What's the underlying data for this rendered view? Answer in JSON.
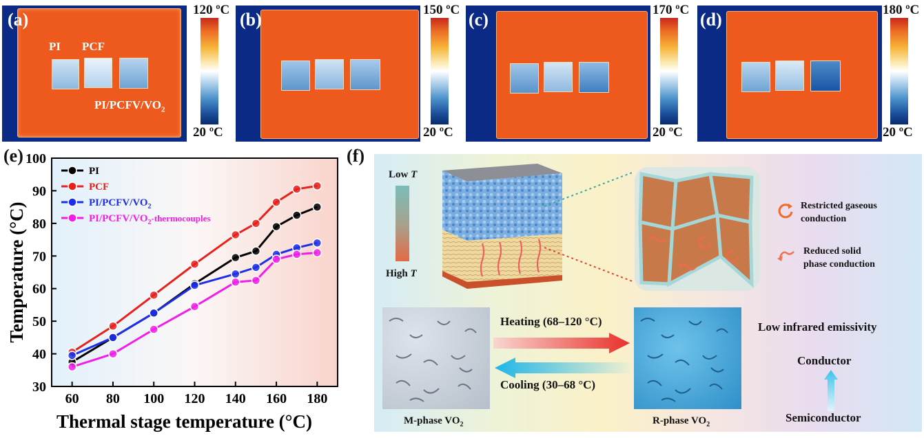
{
  "panels": [
    {
      "label": "(a)",
      "max": "120 ºC",
      "min": "20 ºC",
      "samples": [
        "PI",
        "PCF",
        "PI/PCFV/VO",
        "2"
      ]
    },
    {
      "label": "(b)",
      "max": "150 ºC",
      "min": "20 ºC"
    },
    {
      "label": "(c)",
      "max": "170 ºC",
      "min": "20 ºC"
    },
    {
      "label": "(d)",
      "max": "180 ºC",
      "min": "20 ºC"
    }
  ],
  "panel_e_label": "(e)",
  "panel_f_label": "(f)",
  "chart_data": {
    "type": "line",
    "xlabel": "Thermal stage temperature (°C)",
    "ylabel": "Temperature (°C)",
    "x": [
      60,
      80,
      100,
      120,
      140,
      150,
      160,
      170,
      180
    ],
    "xlim": [
      50,
      190
    ],
    "ylim": [
      30,
      100
    ],
    "xticks": [
      60,
      80,
      100,
      120,
      140,
      160,
      180
    ],
    "yticks": [
      30,
      40,
      50,
      60,
      70,
      80,
      90,
      100
    ],
    "legend_position": "top-left",
    "series": [
      {
        "name": "PI",
        "color": "#000000",
        "values": [
          37.5,
          45,
          52.5,
          61.5,
          69.5,
          71.5,
          79,
          82.5,
          85
        ]
      },
      {
        "name": "PCF",
        "color": "#e8201c",
        "values": [
          40.5,
          48.5,
          58,
          67.5,
          76.5,
          80,
          86.5,
          90.5,
          91.5
        ]
      },
      {
        "name": "PI/PCFV/VO",
        "sub": "2",
        "color": "#1c2ee8",
        "values": [
          39.5,
          45,
          52.5,
          61,
          64.5,
          66.5,
          70.5,
          72.5,
          74
        ]
      },
      {
        "name": "PI/PCFV/VO",
        "sub": "2",
        "suffix": "-thermocouples",
        "color": "#f01ee8",
        "values": [
          36,
          40,
          47.5,
          54.5,
          62,
          62.5,
          69,
          70.5,
          71
        ]
      }
    ]
  },
  "schematic": {
    "gradient_top": "Low ",
    "gradient_bottom": "High ",
    "gradient_var": "T",
    "legend1": [
      "Restricted gaseous",
      "conduction"
    ],
    "legend2": [
      "Reduced solid",
      "phase conduction"
    ],
    "heating": "Heating (68–120 °C)",
    "cooling": "Cooling (30–68 °C)",
    "m_phase": "M-phase VO",
    "r_phase": "R-phase VO",
    "sub2": "2",
    "emissivity": "Low infrared emissivity",
    "conductor": "Conductor",
    "semiconductor": "Semiconductor"
  }
}
